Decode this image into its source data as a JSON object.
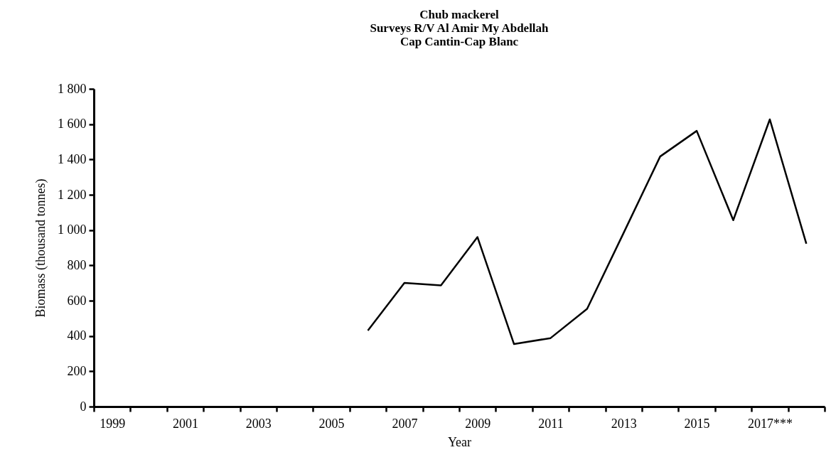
{
  "chart_data": {
    "type": "line",
    "title": "Chub mackerel\nSurveys R/V Al Amir My Abdellah\nCap Cantin-Cap Blanc",
    "xlabel": "Year",
    "ylabel": "Biomass (thousand tonnes)",
    "categories": [
      "1999",
      null,
      "2001",
      null,
      "2003",
      null,
      "2005",
      null,
      "2007",
      null,
      "2009",
      null,
      "2011",
      null,
      "2013",
      null,
      "2015",
      null,
      "2017***",
      null
    ],
    "series": [
      {
        "color": "#000000",
        "values": [
          null,
          null,
          null,
          null,
          null,
          null,
          null,
          431,
          701,
          687,
          960,
          354,
          388,
          554,
          984,
          1417,
          1562,
          1056,
          1627,
          923
        ]
      }
    ],
    "ylim": [
      0,
      1800
    ],
    "yticks": [
      0,
      {
        "value": 200,
        "label": "200"
      },
      {
        "value": 400,
        "label": "400"
      },
      {
        "value": 600,
        "label": "600"
      },
      {
        "value": 800,
        "label": "800"
      },
      {
        "value": 1000,
        "label": "1 000"
      },
      {
        "value": 1200,
        "label": "1 200"
      },
      {
        "value": 1400,
        "label": "1 400"
      },
      {
        "value": 1600,
        "label": "1 600"
      },
      {
        "value": 1800,
        "label": "1 800"
      }
    ],
    "grid": false,
    "legend": false,
    "marker": "none",
    "line_style": "solid"
  }
}
